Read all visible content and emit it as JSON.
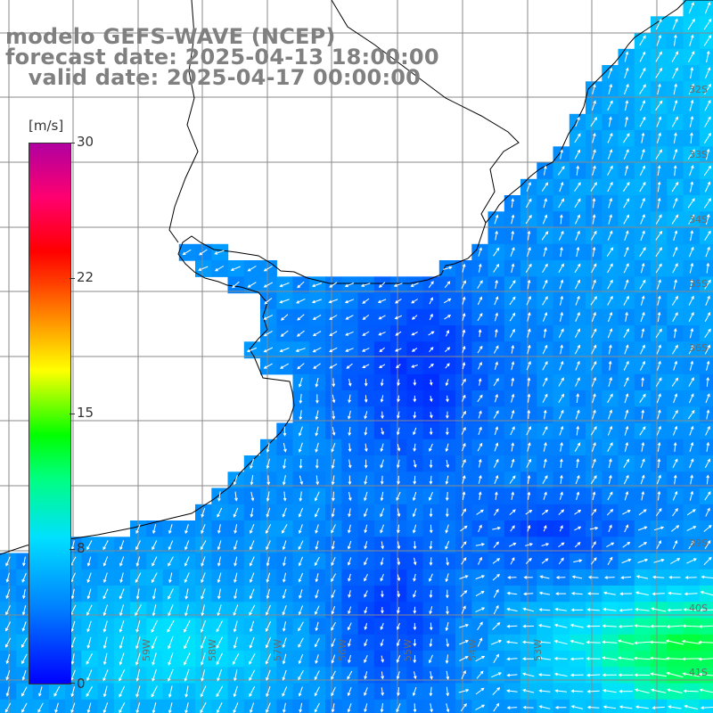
{
  "title": {
    "line1": "modelo GEFS-WAVE (NCEP)",
    "line2": "forecast date: 2025-04-13 18:00:00",
    "line3": "   valid date: 2025-04-17 00:00:00"
  },
  "colorbar": {
    "unit": "[m/s]",
    "ticks": [
      {
        "label": "30",
        "value": 30
      },
      {
        "label": "22",
        "value": 22
      },
      {
        "label": "15",
        "value": 15
      },
      {
        "label": "8",
        "value": 8
      },
      {
        "label": "0",
        "value": 0
      }
    ],
    "min": 0,
    "max": 30,
    "colors": [
      "#0000ff",
      "#0080ff",
      "#00e0ff",
      "#00ff80",
      "#00ff00",
      "#ffff00",
      "#ff8000",
      "#ff0000",
      "#b000a0"
    ]
  },
  "map": {
    "ocean_low_color": "#0028ee",
    "ocean_mid_color": "#0090ff",
    "ocean_high_color": "#00e6c0",
    "land_color": "#ffffff",
    "grid_color": "#888888",
    "lat_labels": [
      "32S",
      "33S",
      "34S",
      "35S",
      "36S",
      "39S",
      "40S",
      "41S"
    ],
    "lon_labels": [
      "59W",
      "58W",
      "57W",
      "56W",
      "55W",
      "54W",
      "53W"
    ]
  }
}
